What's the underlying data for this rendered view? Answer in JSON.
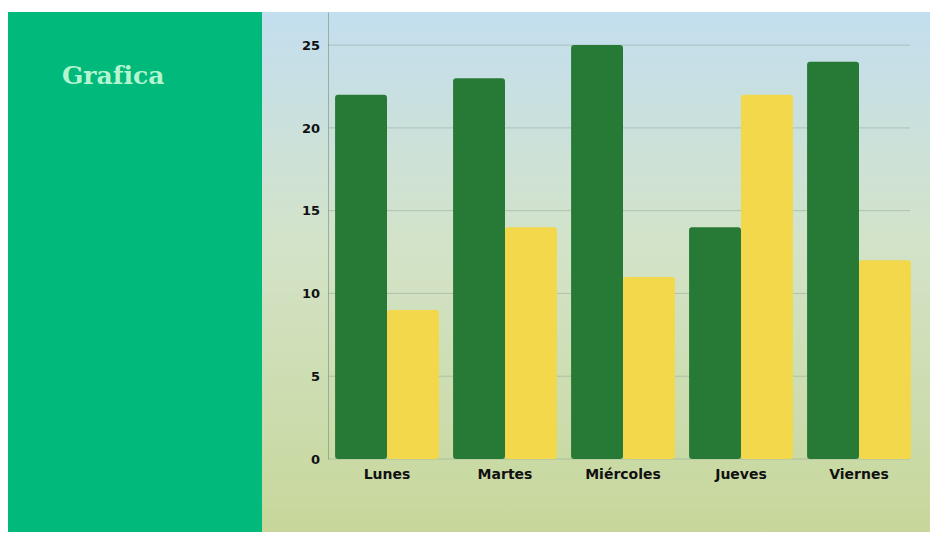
{
  "chart_data": {
    "type": "bar",
    "title": "Grafica",
    "categories": [
      "Lunes",
      "Martes",
      "Miércoles",
      "Jueves",
      "Viernes"
    ],
    "series": [
      {
        "color": "#277a36",
        "values": [
          22,
          23,
          25,
          14,
          24
        ]
      },
      {
        "color": "#f2d84a",
        "values": [
          9,
          14,
          11,
          22,
          12
        ]
      }
    ],
    "ylim": [
      0,
      27
    ],
    "yticks": [
      0,
      5,
      10,
      15,
      20,
      25
    ],
    "grid": true
  }
}
